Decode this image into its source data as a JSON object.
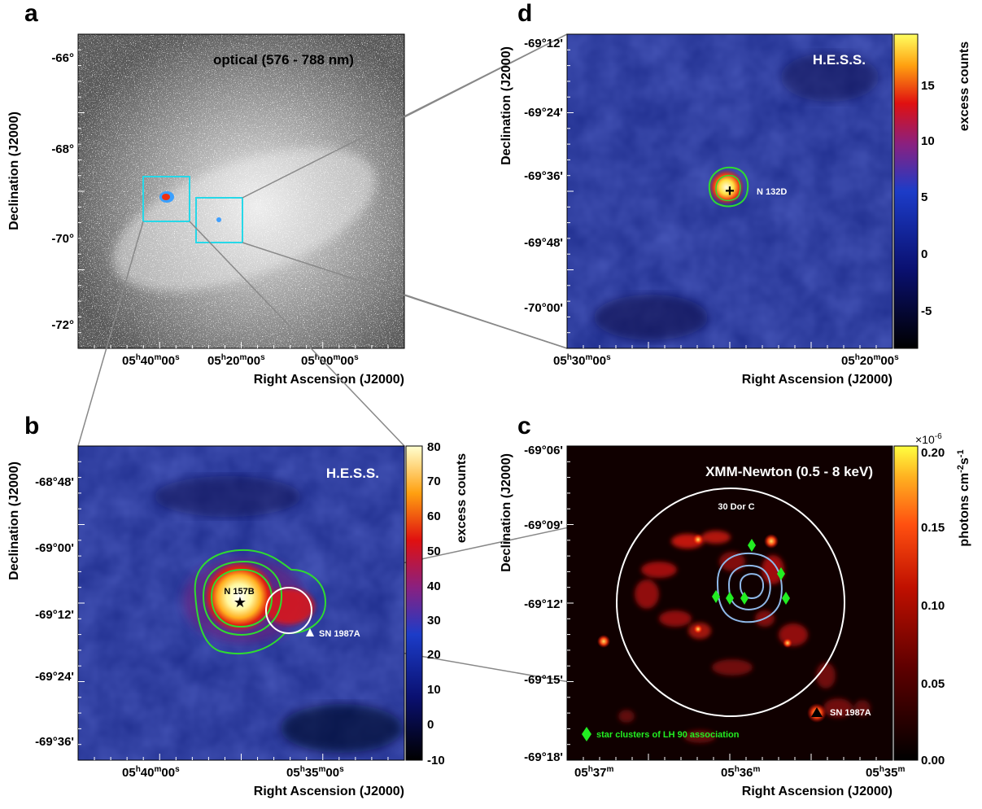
{
  "panels": {
    "a": {
      "letter": "a",
      "title": "optical (576 - 788 nm)",
      "ylabel": "Declination (J2000)",
      "xlabel": "Right Ascension (J2000)",
      "yticks": [
        "-66°",
        "-68°",
        "-70°",
        "-72°"
      ],
      "xticks": [
        {
          "h": "05",
          "m": "40",
          "s": "00"
        },
        {
          "h": "05",
          "m": "20",
          "s": "00"
        },
        {
          "h": "05",
          "m": "00",
          "s": "00"
        }
      ]
    },
    "b": {
      "letter": "b",
      "title": "H.E.S.S.",
      "ylabel": "Declination (J2000)",
      "xlabel": "Right Ascension (J2000)",
      "yticks": [
        "-68°48'",
        "-69°00'",
        "-69°12'",
        "-69°24'",
        "-69°36'"
      ],
      "xticks": [
        {
          "h": "05",
          "m": "40",
          "s": "00"
        },
        {
          "h": "05",
          "m": "35",
          "s": "00"
        }
      ],
      "colorbar_label": "excess counts",
      "colorbar_ticks": [
        "80",
        "70",
        "60",
        "50",
        "40",
        "30",
        "20",
        "10",
        "0",
        "-10"
      ],
      "source_label": "N 157B",
      "sn_label": "SN 1987A"
    },
    "c": {
      "letter": "c",
      "title": "XMM-Newton (0.5 - 8 keV)",
      "ylabel": "Declination (J2000)",
      "xlabel": "Right Ascension (J2000)",
      "yticks": [
        "-69°06'",
        "-69°09'",
        "-69°12'",
        "-69°15'",
        "-69°18'"
      ],
      "xticks": [
        {
          "h": "05",
          "m": "37"
        },
        {
          "h": "05",
          "m": "36"
        },
        {
          "h": "05",
          "m": "35"
        }
      ],
      "colorbar_label_main": "photons cm",
      "colorbar_exp1": "-2",
      "colorbar_mid": "s",
      "colorbar_exp2": "-1",
      "colorbar_scale_main": "×10",
      "colorbar_scale_exp": "-6",
      "colorbar_ticks": [
        "0.20",
        "0.15",
        "0.10",
        "0.05",
        "0.00"
      ],
      "region_label": "30 Dor C",
      "sn_label": "SN 1987A",
      "legend": "star clusters of LH 90 association"
    },
    "d": {
      "letter": "d",
      "title": "H.E.S.S.",
      "ylabel": "Declination (J2000)",
      "xlabel": "Right Ascension (J2000)",
      "yticks": [
        "-69°12'",
        "-69°24'",
        "-69°36'",
        "-69°48'",
        "-70°00'"
      ],
      "xticks": [
        {
          "h": "05",
          "m": "30",
          "s": "00"
        },
        {
          "h": "05",
          "m": "20",
          "s": "00"
        }
      ],
      "colorbar_label": "excess counts",
      "colorbar_ticks": [
        "15",
        "10",
        "5",
        "0",
        "-5"
      ],
      "source_label": "N 132D"
    }
  },
  "colors": {
    "hess_map": "#1d2c8c",
    "xmm_map": "#100000",
    "contour": "#2fdc2f",
    "star_cluster": "#22ee22",
    "box": "#26d8e8",
    "xray_contour": "#8fb8e8"
  }
}
